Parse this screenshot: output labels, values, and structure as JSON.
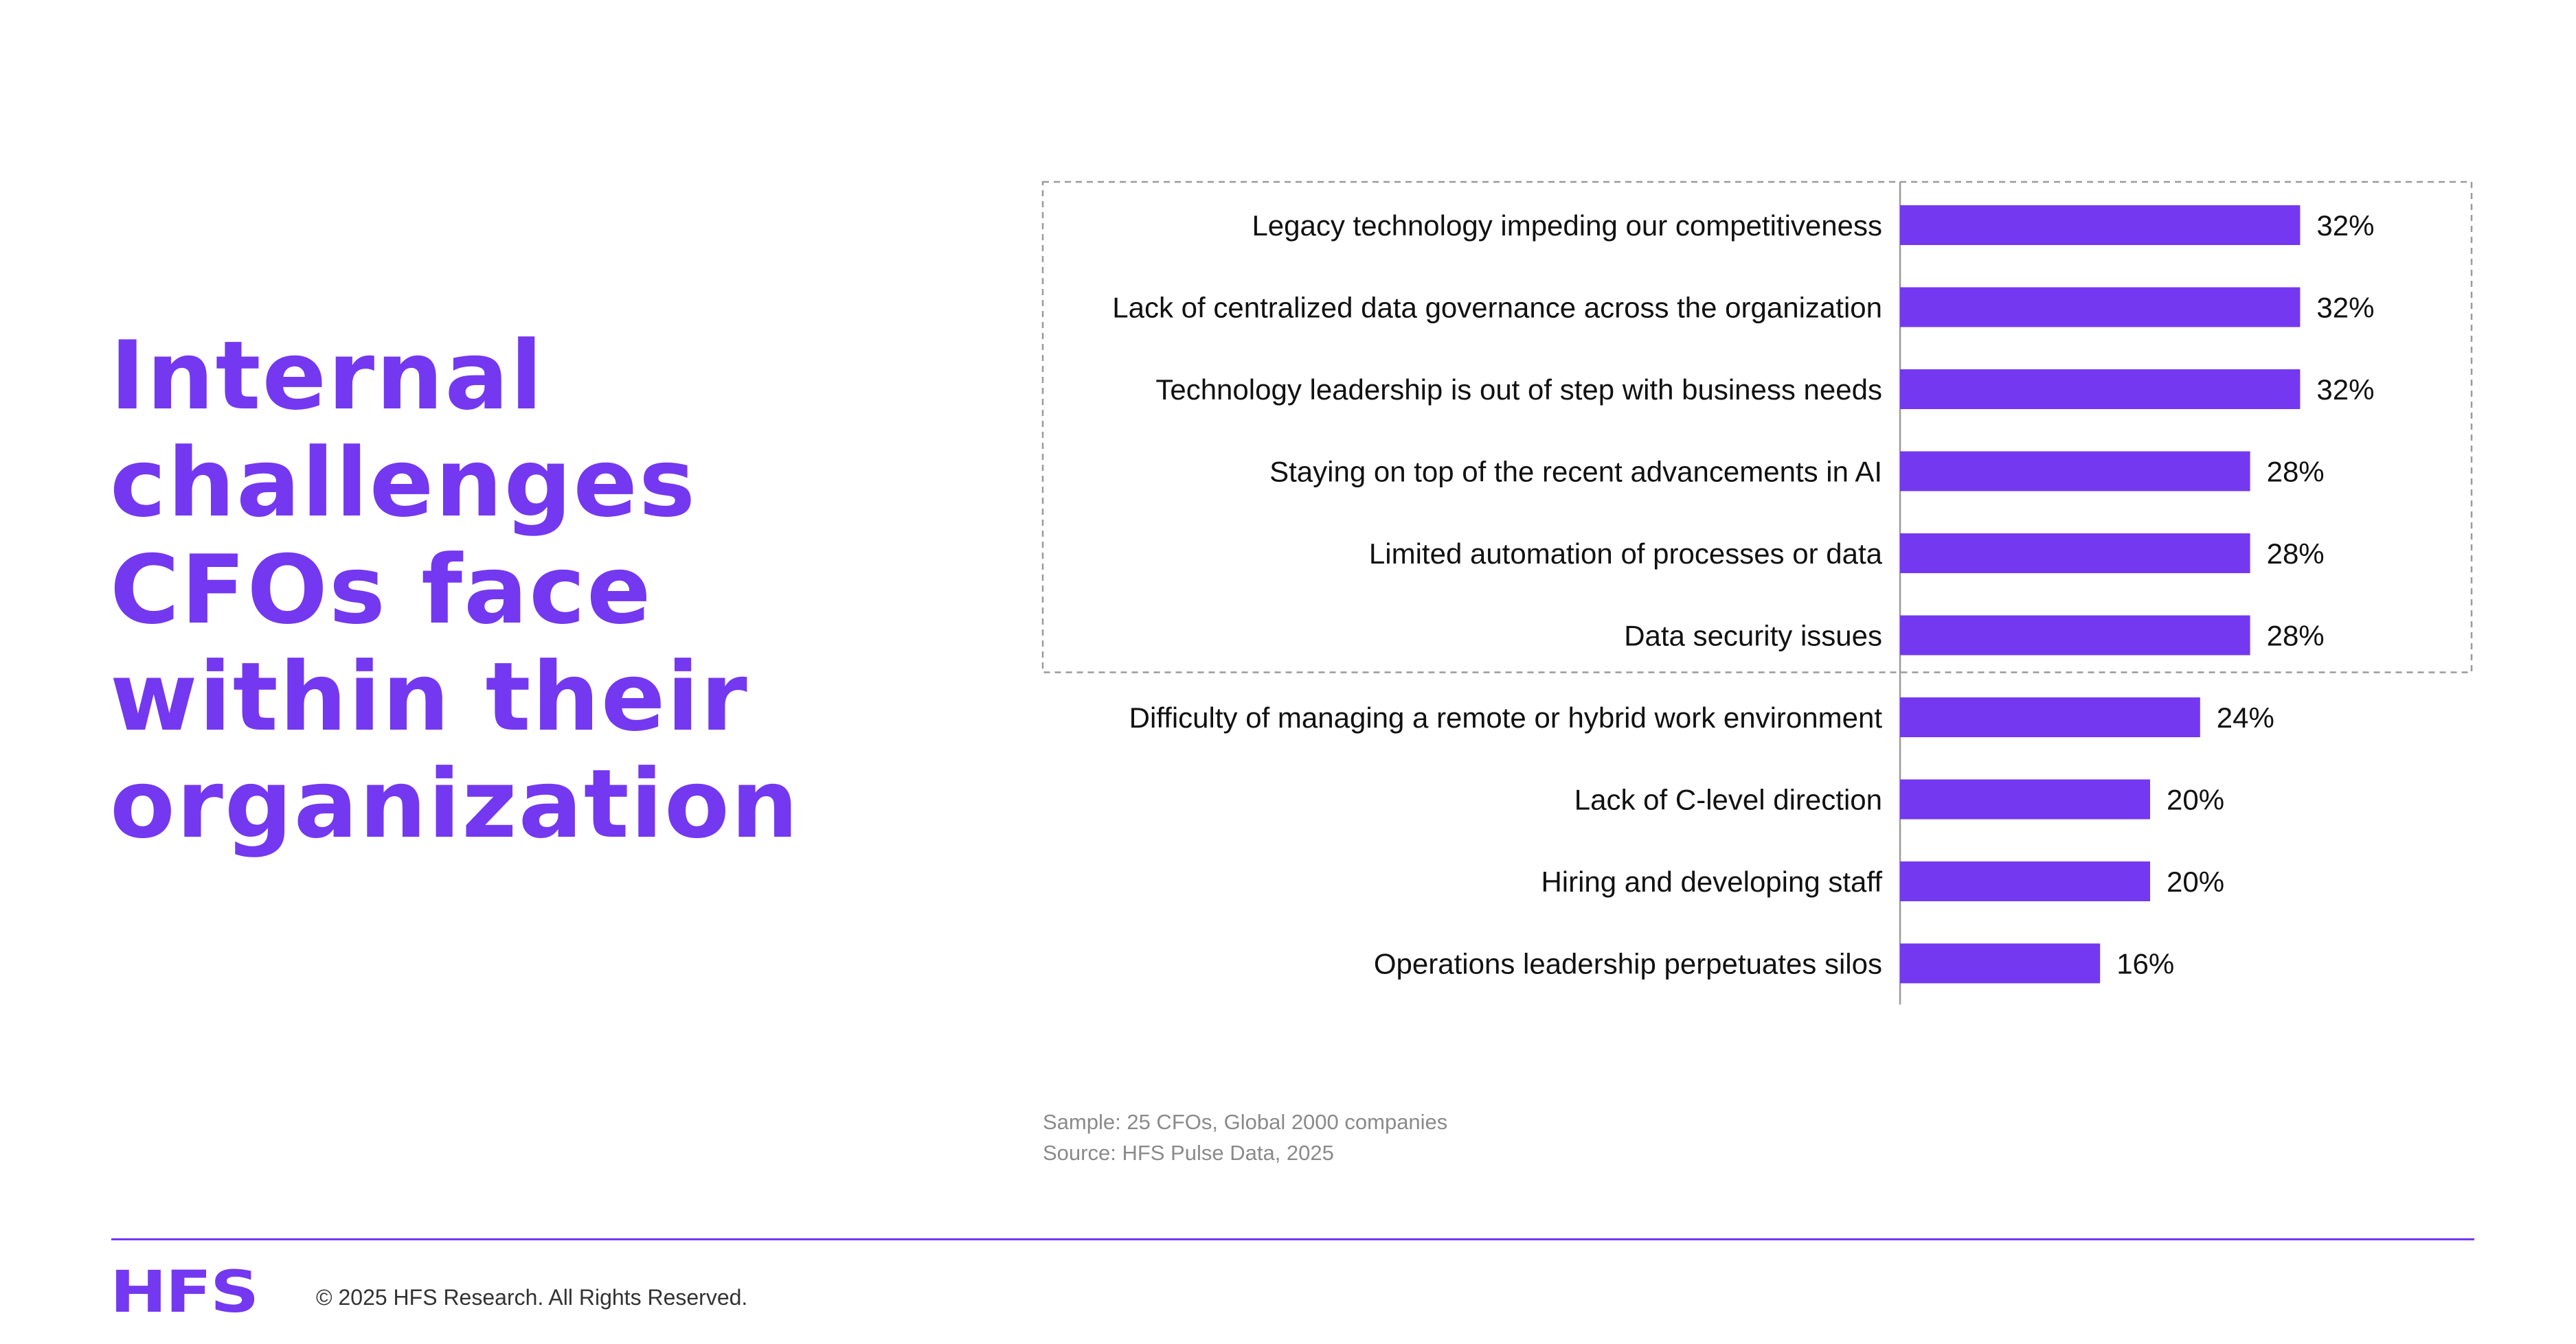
{
  "colors": {
    "accent": "#7438F0",
    "text": "#111111",
    "muted": "#8a8a8a",
    "axis": "#9a9a9a",
    "highlight_box": "#9a9a9a"
  },
  "headline": {
    "lines": [
      "Internal",
      "challenges",
      "CFOs face",
      "within their",
      "organization"
    ]
  },
  "chart_data": {
    "type": "bar",
    "orientation": "horizontal",
    "categories": [
      "Legacy technology impeding our competitiveness",
      "Lack of centralized data governance across the organization",
      "Technology leadership is out of step with business needs",
      "Staying on top of the recent advancements in AI",
      "Limited automation of processes or data",
      "Data security issues",
      "Difficulty of managing a remote or hybrid work environment",
      "Lack of C-level direction",
      "Hiring and developing staff",
      "Operations leadership perpetuates silos"
    ],
    "values": [
      32,
      32,
      32,
      28,
      28,
      28,
      24,
      20,
      20,
      16
    ],
    "value_labels": [
      "32%",
      "32%",
      "32%",
      "28%",
      "28%",
      "28%",
      "24%",
      "20%",
      "20%",
      "16%"
    ],
    "unit": "%",
    "highlighted_count": 6,
    "bar_color": "#7438F0"
  },
  "notes": {
    "sample": "Sample: 25 CFOs, Global 2000 companies",
    "source": "Source: HFS Pulse Data, 2025"
  },
  "footer": {
    "logo": "HFS",
    "copyright": "© 2025 HFS Research. All Rights Reserved."
  }
}
